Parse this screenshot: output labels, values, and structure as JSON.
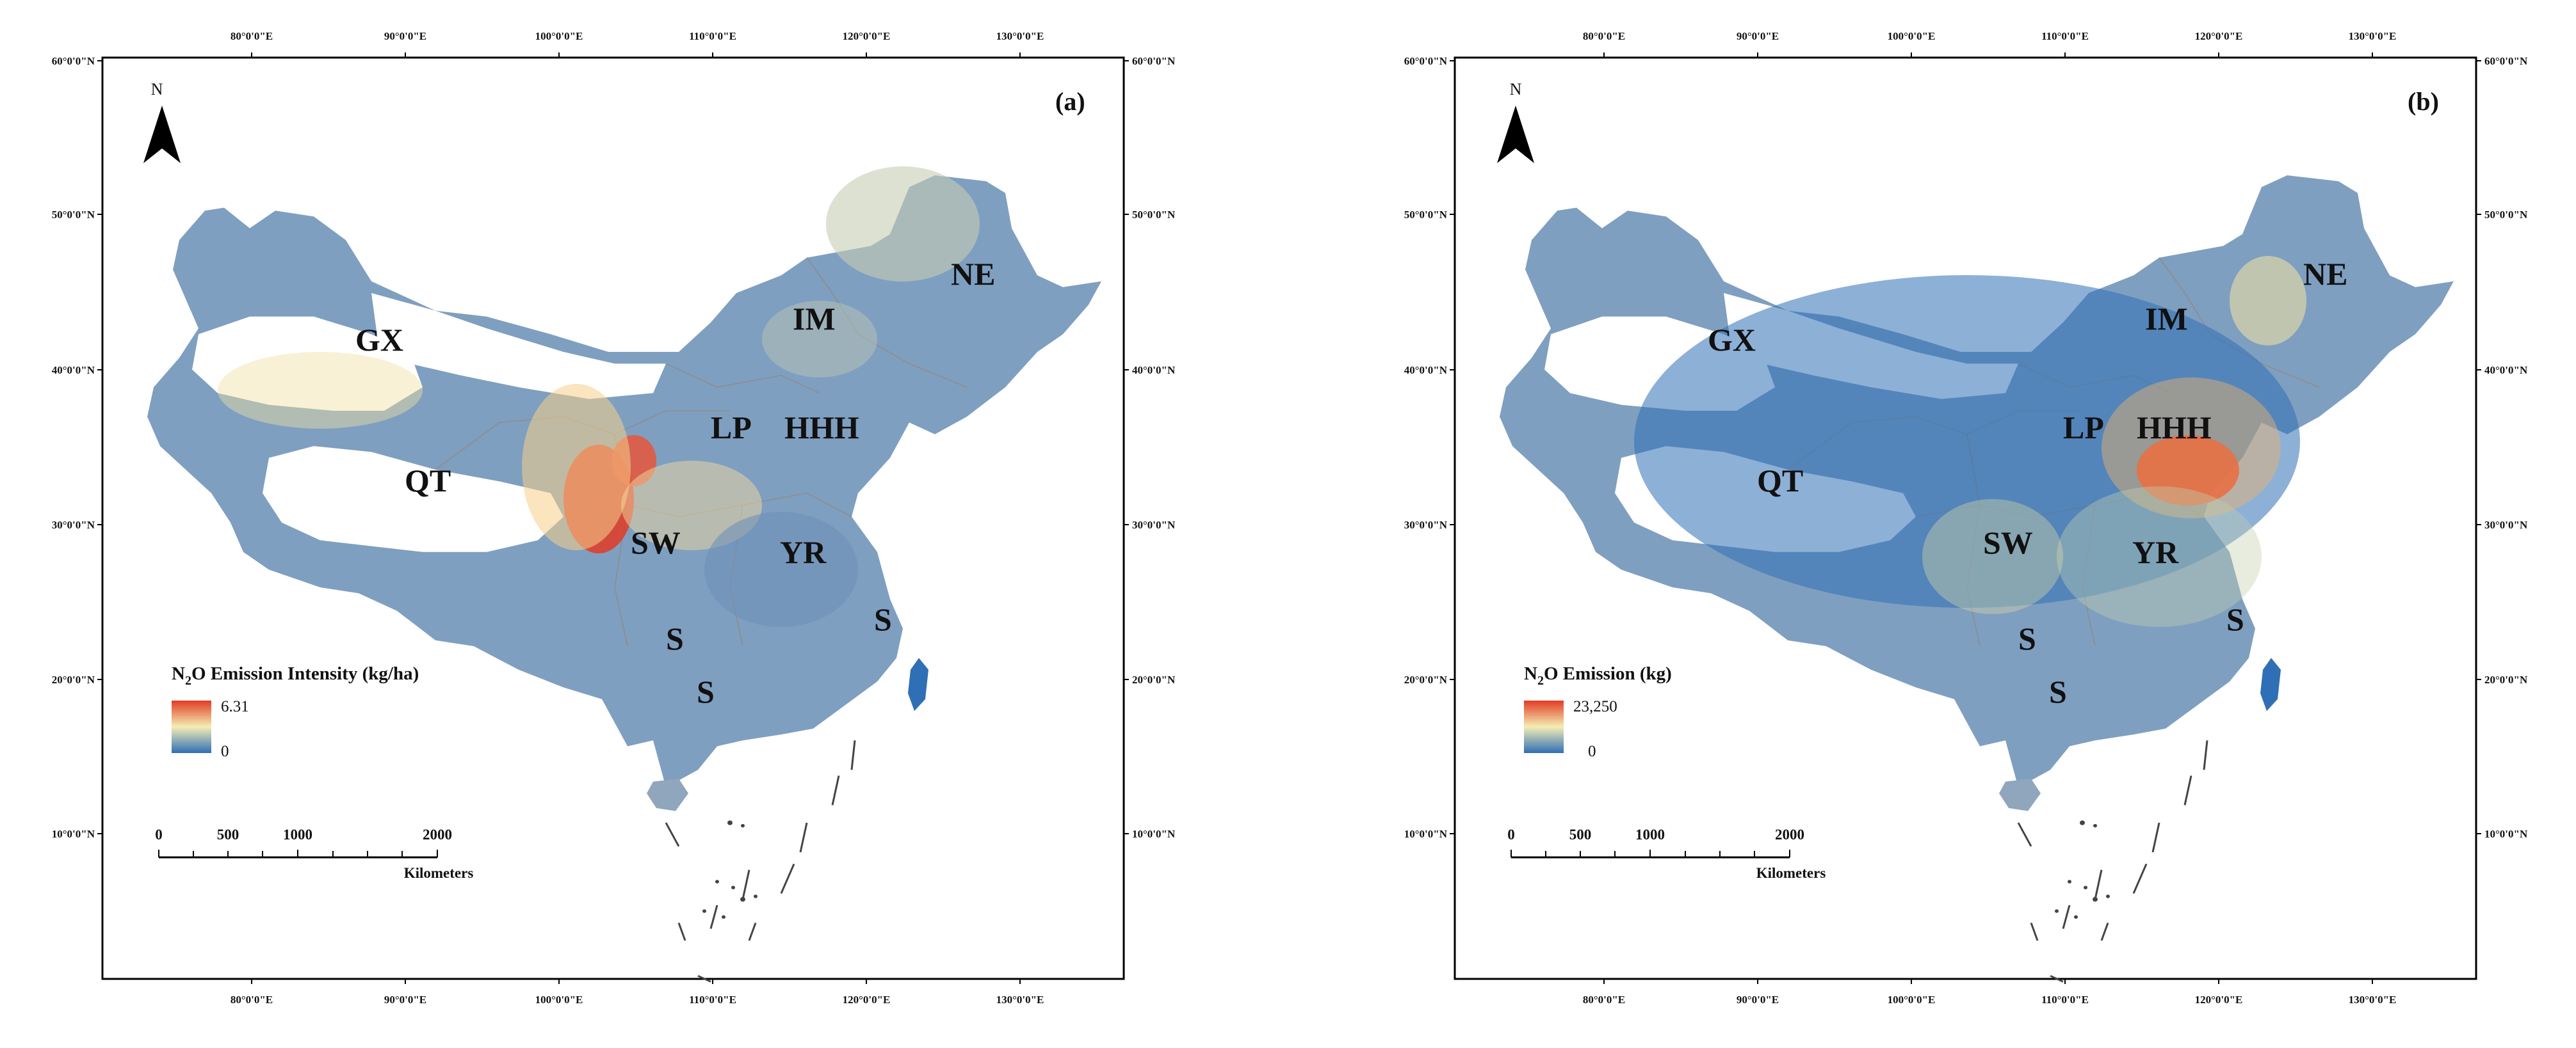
{
  "colors": {
    "low": "#2f6fb6",
    "mid": "#f4edb4",
    "high": "#e23b24",
    "frame": "#000000",
    "boundary": "#8c8c8c"
  },
  "axes": {
    "top_ticks": [
      "80°0'0\"E",
      "90°0'0\"E",
      "100°0'0\"E",
      "110°0'0\"E",
      "120°0'0\"E",
      "130°0'0\"E"
    ],
    "bottom_ticks": [
      "80°0'0\"E",
      "90°0'0\"E",
      "100°0'0\"E",
      "110°0'0\"E",
      "120°0'0\"E",
      "130°0'0\"E"
    ],
    "left_ticks": [
      "60°0'0\"N",
      "50°0'0\"N",
      "40°0'0\"N",
      "30°0'0\"N",
      "20°0'0\"N",
      "10°0'0\"N"
    ],
    "right_ticks": [
      "60°0'0\"N",
      "50°0'0\"N",
      "40°0'0\"N",
      "30°0'0\"N",
      "20°0'0\"N",
      "10°0'0\"N"
    ]
  },
  "north_label": "N",
  "regions": [
    "GX",
    "IM",
    "NE",
    "LP",
    "HHH",
    "QT",
    "SW",
    "YR",
    "S",
    "S",
    "S"
  ],
  "scale_bar": {
    "ticks": [
      "0",
      "500",
      "1000",
      "2000"
    ],
    "unit": "Kilometers"
  },
  "panels": [
    {
      "label": "(a)",
      "legend": {
        "title_prefix": "N",
        "title_sub": "2",
        "title_suffix": "O Emission Intensity (kg/ha)",
        "max": "6.31",
        "min": "0"
      }
    },
    {
      "label": "(b)",
      "legend": {
        "title_prefix": "N",
        "title_sub": "2",
        "title_suffix": "O Emission (kg)",
        "max": "23,250",
        "min": "0"
      }
    }
  ]
}
